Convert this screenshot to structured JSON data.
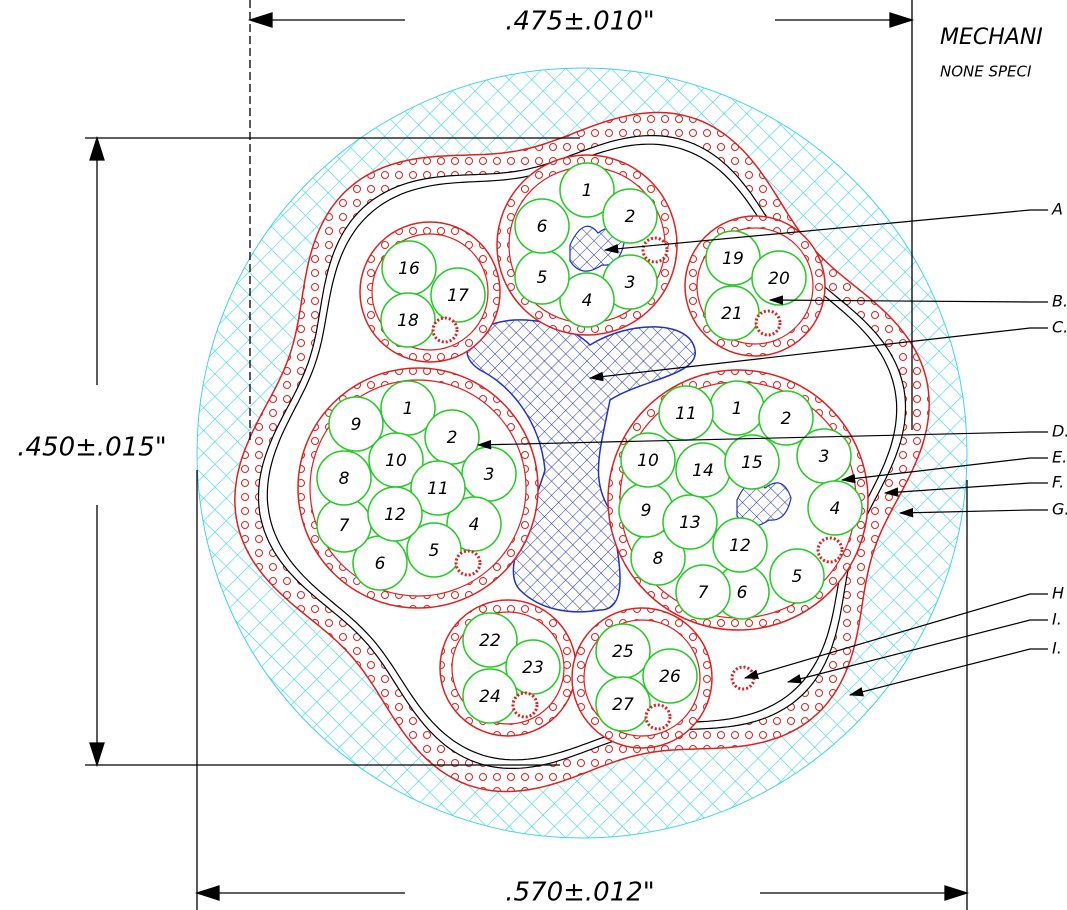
{
  "dimensions": {
    "top": ".475±.010\"",
    "left": ".450±.015\"",
    "bottom": ".570±.012\""
  },
  "title": {
    "line1": "MECHANI",
    "line2": "NONE SPECI"
  },
  "callouts": [
    "A",
    "B.",
    "C.",
    "D.",
    "E.",
    "F.",
    "G.",
    "H",
    "I.",
    "I."
  ],
  "groups": [
    {
      "wires": [
        "1",
        "2",
        "3",
        "4",
        "5",
        "6"
      ]
    },
    {
      "wires": [
        "16",
        "17",
        "18"
      ]
    },
    {
      "wires": [
        "19",
        "20",
        "21"
      ]
    },
    {
      "wires": [
        "1",
        "2",
        "3",
        "4",
        "5",
        "6",
        "7",
        "8",
        "9",
        "10",
        "11",
        "12"
      ]
    },
    {
      "wires": [
        "1",
        "2",
        "3",
        "4",
        "5",
        "6",
        "7",
        "8",
        "9",
        "10",
        "11",
        "12",
        "13",
        "14",
        "15"
      ]
    },
    {
      "wires": [
        "22",
        "23",
        "24"
      ]
    },
    {
      "wires": [
        "25",
        "26",
        "27"
      ]
    }
  ]
}
